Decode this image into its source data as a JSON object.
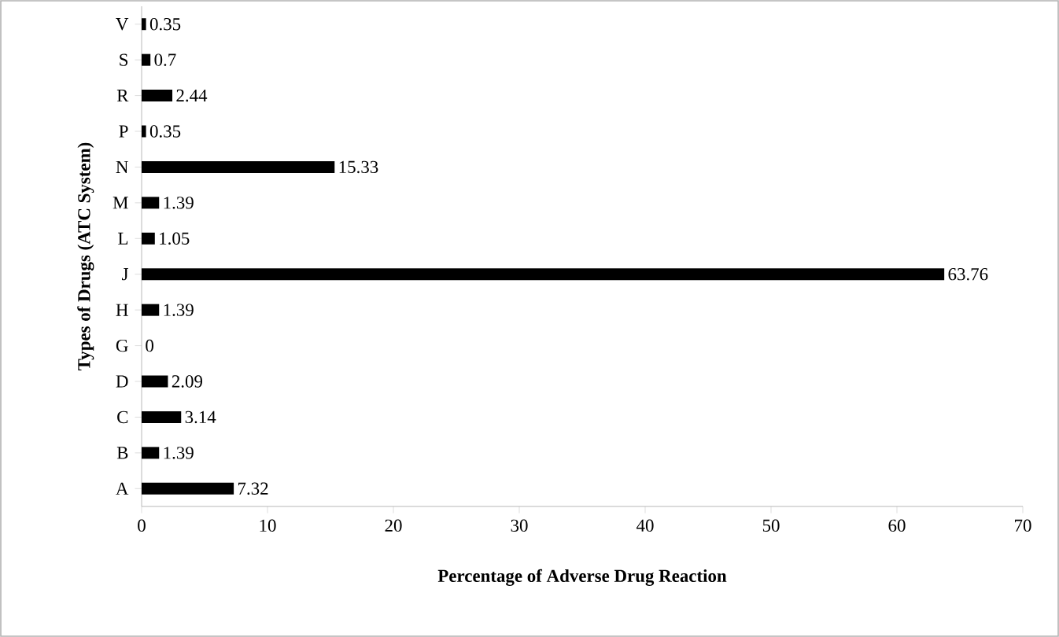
{
  "chart_data": {
    "type": "bar",
    "orientation": "horizontal",
    "xlabel": "Percentage of Adverse Drug Reaction",
    "ylabel": "Types of Drugs (ATC System)",
    "categories": [
      "V",
      "S",
      "R",
      "P",
      "N",
      "M",
      "L",
      "J",
      "H",
      "G",
      "D",
      "C",
      "B",
      "A"
    ],
    "values": [
      0.35,
      0.7,
      2.44,
      0.35,
      15.33,
      1.39,
      1.05,
      63.76,
      1.39,
      0,
      2.09,
      3.14,
      1.39,
      7.32
    ],
    "color": "#000000",
    "xlim": [
      0,
      70
    ],
    "xticks": [
      0,
      10,
      20,
      30,
      40,
      50,
      60,
      70
    ],
    "data_labels": true,
    "grid": false
  }
}
